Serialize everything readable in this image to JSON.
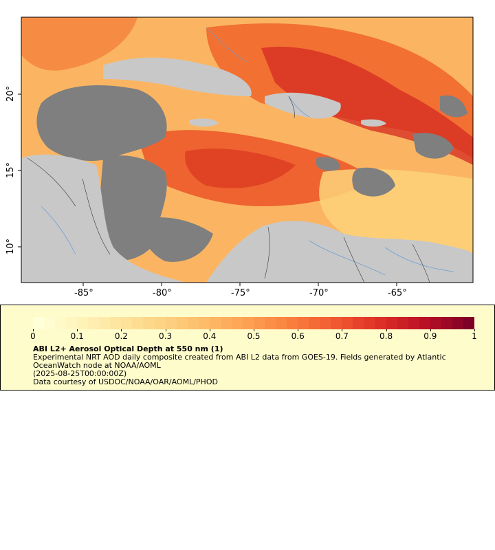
{
  "map": {
    "x_axis_labels": [
      "-85°",
      "-80°",
      "-75°",
      "-70°",
      "-65°"
    ],
    "y_axis_labels": [
      "20°",
      "15°",
      "10°"
    ],
    "colors": {
      "land": "#c8c8c8",
      "no_data": "#7f7f7f",
      "rivers": "#6f9fd6",
      "borders": "#5a5a5a"
    }
  },
  "legend": {
    "colorbar_labels": [
      "0",
      "0.1",
      "0.2",
      "0.3",
      "0.4",
      "0.5",
      "0.6",
      "0.7",
      "0.8",
      "0.9",
      "1"
    ],
    "colorbar_colors": [
      "#ffffd9",
      "#fff2b8",
      "#fee39a",
      "#fdd07f",
      "#fdb866",
      "#fd9c4e",
      "#f97b3c",
      "#ef5530",
      "#dc2c26",
      "#b80f26",
      "#7f0026"
    ],
    "title": "ABI L2+ Aerosol Optical Depth at 550 nm (1)",
    "description": "Experimental NRT AOD daily composite created from ABI L2 data from GOES-19. Fields generated by Atlantic OceanWatch node at NOAA/AOML",
    "date": "(2025-08-25T00:00:00Z)",
    "credit": "Data courtesy of USDOC/NOAA/OAR/AOML/PHOD"
  }
}
